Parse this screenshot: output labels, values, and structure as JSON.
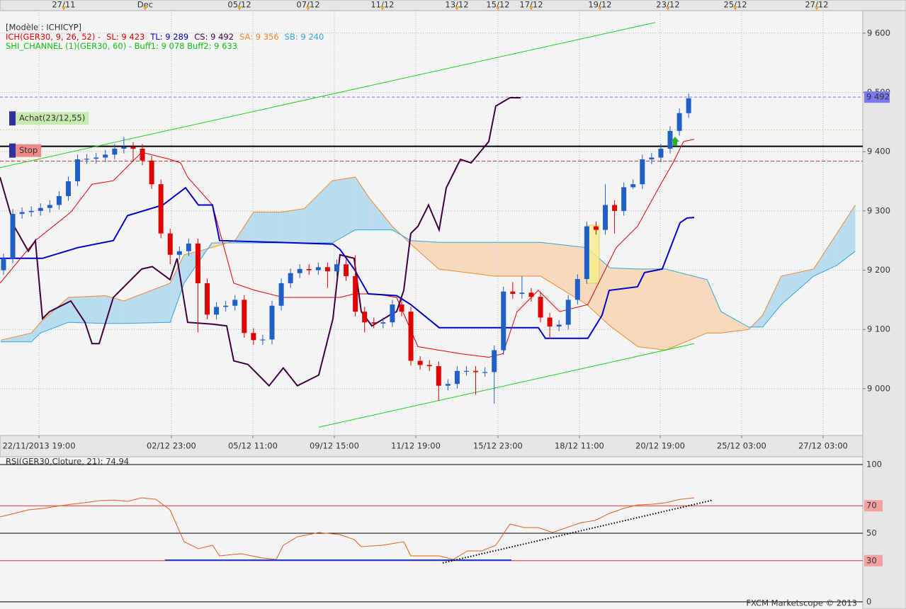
{
  "chart_data": [
    {
      "type": "candlestick",
      "header": "[Modèle : ICHICYP]",
      "legend_lines": [
        [
          {
            "text": "ICH(GER30, 9, 26, 52) -",
            "color": "#e00000"
          },
          {
            "text": "SL: 9 423",
            "color": "#e00000"
          },
          {
            "text": "TL: 9 289",
            "color": "#0000c0"
          },
          {
            "text": "CS: 9 492",
            "color": "#400040"
          },
          {
            "text": "SA: 9 356",
            "color": "#f08a30"
          },
          {
            "text": "SB: 9 240",
            "color": "#30a8d8"
          }
        ],
        [
          {
            "text": "SHI_CHANNEL (1)(GER30, 60) -  Buff1: 9 078  Buff2: 9 633",
            "color": "#10c010"
          }
        ]
      ],
      "categories": [
        null,
        null,
        null,
        null,
        null,
        null,
        null,
        null,
        null,
        null,
        null,
        null,
        null,
        null,
        null,
        null,
        null,
        null,
        null,
        null,
        null,
        null,
        null,
        null,
        null,
        null,
        null,
        null,
        null,
        null,
        null,
        null,
        null,
        null,
        null,
        null,
        null,
        null,
        null,
        null,
        null,
        null,
        null,
        null,
        null,
        null,
        null,
        null,
        null,
        null,
        null,
        null,
        null,
        null,
        null,
        null,
        null,
        null,
        null,
        null,
        null,
        null,
        null,
        null,
        null,
        null,
        null,
        null,
        null,
        null,
        null,
        null,
        null,
        null,
        null
      ],
      "open": [
        9200,
        9220,
        9295,
        9298,
        9300,
        9305,
        9310,
        9325,
        9350,
        9387,
        9388,
        9390,
        9395,
        9405,
        9408,
        9405,
        9385,
        9345,
        9262,
        9226,
        9232,
        9245,
        9178,
        9125,
        9138,
        9140,
        9150,
        9094,
        9082,
        9083,
        9140,
        9178,
        9195,
        9202,
        9200,
        9205,
        9198,
        9210,
        9190,
        9130,
        9112,
        9110,
        9112,
        9142,
        9130,
        9047,
        9040,
        9038,
        9005,
        9008,
        9030,
        9030,
        9028,
        9028,
        9065,
        9164,
        9160,
        9162,
        9155,
        9120,
        9105,
        9108,
        9150,
        9185,
        9274,
        9268,
        9310,
        9300,
        9340,
        9345,
        9387,
        9390,
        9405,
        9435,
        9465
      ],
      "high": [
        9228,
        9303,
        9306,
        9308,
        9313,
        9318,
        9333,
        9358,
        9395,
        9396,
        9398,
        9403,
        9413,
        9425,
        9416,
        9413,
        9393,
        9353,
        9270,
        9240,
        9253,
        9253,
        9186,
        9146,
        9148,
        9158,
        9158,
        9102,
        9091,
        9148,
        9186,
        9203,
        9210,
        9210,
        9213,
        9213,
        9218,
        9218,
        9225,
        9138,
        9120,
        9120,
        9150,
        9150,
        9138,
        9055,
        9048,
        9046,
        9016,
        9038,
        9038,
        9038,
        9036,
        9073,
        9172,
        9180,
        9190,
        9170,
        9163,
        9128,
        9116,
        9158,
        9193,
        9282,
        9282,
        9345,
        9318,
        9348,
        9353,
        9395,
        9398,
        9413,
        9443,
        9473,
        9498
      ],
      "low": [
        9192,
        9212,
        9287,
        9290,
        9292,
        9297,
        9302,
        9317,
        9342,
        9379,
        9380,
        9382,
        9387,
        9397,
        9385,
        9377,
        9337,
        9254,
        9210,
        9218,
        9224,
        9095,
        9117,
        9117,
        9130,
        9132,
        9086,
        9074,
        9074,
        9075,
        9132,
        9170,
        9187,
        9192,
        9192,
        9170,
        9190,
        9182,
        9122,
        9095,
        9102,
        9102,
        9104,
        9122,
        9039,
        9032,
        9030,
        8980,
        8997,
        9000,
        9022,
        8990,
        9020,
        8975,
        9057,
        9152,
        9152,
        9147,
        9112,
        9085,
        9097,
        9100,
        9142,
        9177,
        9260,
        9260,
        9262,
        9292,
        9337,
        9337,
        9379,
        9382,
        9397,
        9427,
        9457
      ],
      "close": [
        9220,
        9295,
        9298,
        9300,
        9305,
        9310,
        9325,
        9350,
        9387,
        9388,
        9390,
        9395,
        9405,
        9408,
        9405,
        9385,
        9345,
        9262,
        9226,
        9232,
        9245,
        9178,
        9125,
        9138,
        9140,
        9150,
        9094,
        9082,
        9083,
        9140,
        9178,
        9195,
        9202,
        9200,
        9205,
        9198,
        9210,
        9190,
        9130,
        9112,
        9110,
        9112,
        9142,
        9130,
        9047,
        9040,
        9038,
        9005,
        9008,
        9030,
        9030,
        9028,
        9028,
        9065,
        9164,
        9160,
        9162,
        9155,
        9120,
        9105,
        9108,
        9150,
        9185,
        9274,
        9268,
        9310,
        9300,
        9340,
        9345,
        9387,
        9390,
        9405,
        9435,
        9465,
        9490
      ],
      "up_color": "#1f5fc8",
      "down_color": "#e00000",
      "xlim": [
        -0.38,
        92.81
      ],
      "xticks": [
        {
          "value": 3.83,
          "label": "22/11/2013 19:00"
        },
        {
          "value": 18.13,
          "label": "02/12 23:00"
        },
        {
          "value": 26.93,
          "label": "05/12 11:00"
        },
        {
          "value": 35.73,
          "label": "09/12 15:00"
        },
        {
          "value": 44.53,
          "label": "11/12 19:00"
        },
        {
          "value": 53.4,
          "label": "15/12 23:00"
        },
        {
          "value": 62.2,
          "label": "18/12 11:00"
        },
        {
          "value": 70.93,
          "label": "20/12 19:00"
        },
        {
          "value": 79.72,
          "label": "25/12 03:00"
        },
        {
          "value": 88.52,
          "label": "27/12 03:00"
        }
      ],
      "top_xticks": [
        {
          "value": 6.5,
          "label": "27/11"
        },
        {
          "value": 15.3,
          "label": "Dec"
        },
        {
          "value": 25.48,
          "label": "05/12"
        },
        {
          "value": 32.9,
          "label": "07/12"
        },
        {
          "value": 40.93,
          "label": "11/12"
        },
        {
          "value": 48.97,
          "label": "13/12"
        },
        {
          "value": 53.4,
          "label": "15/12"
        },
        {
          "value": 57.0,
          "label": "17/12"
        },
        {
          "value": 64.42,
          "label": "19/12"
        },
        {
          "value": 71.77,
          "label": "23/12"
        },
        {
          "value": 79.04,
          "label": "25/12"
        },
        {
          "value": 87.83,
          "label": "27/12"
        }
      ],
      "ylim": [
        8921,
        9638
      ],
      "yticks": [
        {
          "value": 9000,
          "label": "9 000"
        },
        {
          "value": 9100,
          "label": "9 100"
        },
        {
          "value": 9200,
          "label": "9 200"
        },
        {
          "value": 9300,
          "label": "9 300"
        },
        {
          "value": 9400,
          "label": "9 400"
        },
        {
          "value": 9500,
          "label": "9 500"
        },
        {
          "value": 9600,
          "label": "9 600"
        }
      ],
      "grid": true,
      "cloud": {
        "x": [
          -0.3,
          3,
          4,
          7,
          11,
          13,
          18,
          19.5,
          22.5,
          25,
          27,
          30,
          32.5,
          35.5,
          38,
          39.5,
          42,
          44,
          47,
          53,
          58,
          63,
          65.5,
          68.5,
          71.5,
          76,
          77.5,
          80.5,
          82,
          84,
          87.5,
          90,
          92
        ],
        "sa": [
          9082,
          9094,
          9112,
          9154,
          9157,
          9148,
          9178,
          9226,
          9238,
          9250,
          9298,
          9298,
          9304,
          9351,
          9357,
          9322,
          9274,
          9244,
          9202,
          9190,
          9190,
          9142,
          9106,
          9071,
          9065,
          9094,
          9094,
          9100,
          9124,
          9190,
          9202,
          9262,
          9310
        ],
        "sb": [
          9079,
          9079,
          9094,
          9112,
          9110,
          9110,
          9112,
          9178,
          9246,
          9246,
          9246,
          9246,
          9246,
          9246,
          9268,
          9268,
          9268,
          9250,
          9247,
          9247,
          9247,
          9238,
          9204,
          9202,
          9202,
          9184,
          9130,
          9104,
          9104,
          9142,
          9190,
          9208,
          9232
        ],
        "sa_color": "#f08a30",
        "sb_color": "#30a8d8",
        "up_fill": "#b9dcef",
        "down_fill": "#f7d9bd"
      },
      "series": [
        {
          "color": "#e00000",
          "width": 1,
          "x": [
            -0.38,
            3.44,
            7.27,
            9.56,
            11.86,
            14.92,
            17.98,
            19.13,
            19.89,
            22.57,
            24.87,
            27.16,
            30.22,
            33.28,
            36.34,
            37.87,
            40.17,
            42.46,
            44.76,
            47.05,
            49.35,
            52.41,
            53.94,
            55.47,
            57.77,
            60.06,
            63.12,
            64.65,
            66.18,
            68.48,
            70.77,
            72.3,
            73.45,
            74.6
          ],
          "values": [
            9178,
            9250,
            9298,
            9345,
            9351,
            9399,
            9387,
            9381,
            9357,
            9310,
            9178,
            9166,
            9154,
            9154,
            9154,
            9160,
            9160,
            9154,
            9071,
            9065,
            9059,
            9053,
            9059,
            9130,
            9166,
            9130,
            9142,
            9190,
            9238,
            9274,
            9339,
            9381,
            9417,
            9421
          ]
        },
        {
          "color": "#0000c8",
          "width": 2,
          "x": [
            -0.38,
            4.21,
            8.03,
            11.86,
            13.39,
            17.21,
            19.66,
            21.04,
            22.57,
            23.34,
            35.58,
            36.34,
            37.87,
            39.4,
            42.46,
            43.99,
            47.05,
            57.77,
            58.53,
            63.12,
            64.65,
            65.42,
            68.48,
            69.24,
            71.15,
            73.07,
            73.83,
            74.6
          ],
          "values": [
            9220,
            9220,
            9238,
            9250,
            9292,
            9310,
            9339,
            9310,
            9310,
            9250,
            9244,
            9235,
            9202,
            9160,
            9157,
            9142,
            9103,
            9103,
            9085,
            9085,
            9124,
            9166,
            9172,
            9196,
            9202,
            9280,
            9288,
            9289
          ]
        },
        {
          "color": "#400040",
          "width": 2,
          "x": [
            -0.38,
            1.15,
            2.68,
            3.44,
            4.21,
            4.97,
            7.27,
            8.8,
            9.56,
            10.33,
            11.86,
            13.39,
            14.92,
            16.07,
            17.98,
            18.75,
            19.89,
            22.57,
            24.1,
            24.87,
            26.4,
            28.69,
            30.22,
            31.75,
            34.05,
            35.58,
            36.34,
            37.87,
            38.64,
            39.79,
            41.7,
            42.46,
            43.23,
            43.99,
            44.76,
            45.91,
            47.05,
            47.82,
            49.35,
            50.5,
            52.41,
            53.17,
            54.7,
            55.85
          ],
          "values": [
            9357,
            9274,
            9232,
            9250,
            9118,
            9130,
            9148,
            9112,
            9076,
            9076,
            9154,
            9178,
            9202,
            9206,
            9184,
            9220,
            9112,
            9109,
            9106,
            9047,
            9041,
            9005,
            9035,
            9005,
            9023,
            9118,
            9226,
            9220,
            9130,
            9106,
            9124,
            9130,
            9166,
            9262,
            9274,
            9310,
            9268,
            9339,
            9387,
            9381,
            9417,
            9477,
            9491,
            9491
          ]
        },
        {
          "color": "#20d020",
          "width": 1,
          "x": [
            -0.38,
            70.39
          ],
          "values": [
            9373,
            9618
          ]
        },
        {
          "color": "#20d020",
          "width": 1,
          "x": [
            34.05,
            74.6
          ],
          "values": [
            8935,
            9076
          ]
        }
      ],
      "levels": [
        {
          "label": "Achat(23/12,55)",
          "value": 9437,
          "color": "#c8c070",
          "style": "dotted",
          "label_color": "#c8ecb0"
        },
        {
          "label": "Stop",
          "value": 9409,
          "color": "#000000",
          "style": "solid",
          "label_color": "#f08a8a"
        },
        {
          "value": 9384,
          "color": "#e03030",
          "style": "dashed"
        }
      ],
      "last_price": {
        "value": 9492,
        "label": "9 492",
        "color": "#7878f0"
      }
    },
    {
      "type": "line",
      "title": "RSI(GER30,Cloture, 21): 74,94",
      "x": [
        -0.38,
        1.15,
        2.68,
        4.21,
        5.74,
        7.27,
        8.8,
        10.33,
        11.86,
        13.39,
        14.92,
        16.45,
        17.98,
        19.51,
        21.04,
        22.57,
        23.34,
        25.63,
        27.93,
        29.46,
        30.22,
        31.75,
        34.05,
        36.34,
        37.87,
        38.64,
        40.93,
        43.23,
        43.99,
        47.05,
        48.58,
        50.11,
        51.64,
        53.17,
        54.7,
        56.24,
        57.77,
        59.3,
        60.83,
        62.36,
        63.89,
        65.42,
        66.95,
        68.48,
        70.01,
        71.54,
        73.07,
        74.6
      ],
      "values": [
        61.9,
        64.4,
        67.0,
        68.0,
        69.6,
        71.1,
        72.2,
        73.7,
        74.2,
        73.2,
        75.8,
        74.7,
        67.0,
        43.8,
        38.7,
        41.2,
        33.5,
        35.1,
        32.0,
        30.9,
        41.2,
        47.4,
        50.5,
        49.0,
        45.4,
        40.2,
        41.2,
        43.8,
        33.5,
        33.5,
        30.9,
        37.1,
        37.1,
        41.2,
        56.7,
        54.1,
        54.1,
        50.5,
        54.1,
        57.7,
        59.3,
        64.4,
        68.0,
        70.6,
        71.1,
        72.2,
        74.7,
        75.8
      ],
      "color": "#e06020",
      "xlim": [
        -0.38,
        92.81
      ],
      "ylim": [
        -5.2,
        105.7
      ],
      "yticks": [
        0,
        30,
        50,
        70,
        100
      ],
      "tick_colors": [
        "#000000",
        "#e03030",
        "#000000",
        "#e03030",
        "#000000"
      ],
      "highlight_bg": "#f4a0a0",
      "trendlines": [
        {
          "x": [
            17.44,
            54.86
          ],
          "values": [
            30.4,
            30.4
          ],
          "color": "#2040d0",
          "style": "solid"
        },
        {
          "x": [
            47.44,
            76.66
          ],
          "values": [
            28.4,
            74.2
          ],
          "color": "#000000",
          "style": "dotted"
        }
      ],
      "footer": "FXCM Marketscope © 2013"
    }
  ]
}
